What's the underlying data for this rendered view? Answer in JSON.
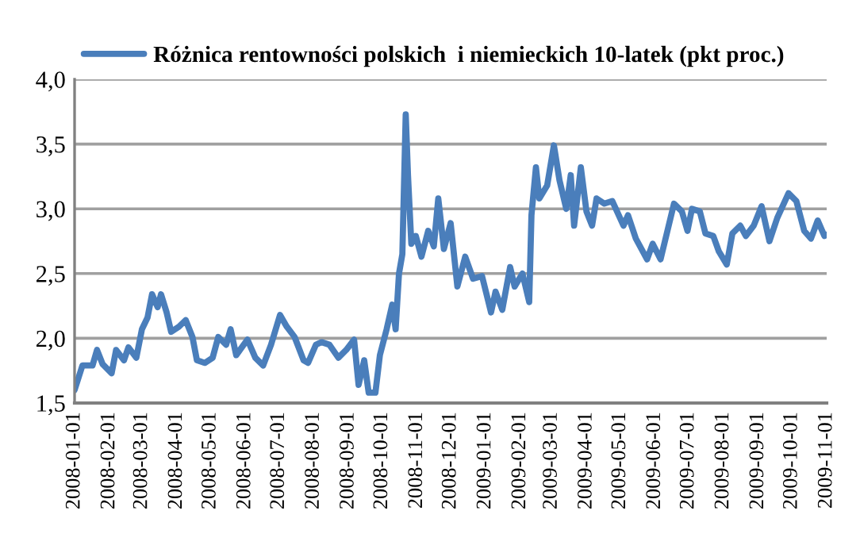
{
  "chart_data": {
    "type": "line",
    "x": [
      "2008-01-01",
      "2008-01-08",
      "2008-01-17",
      "2008-01-21",
      "2008-01-26",
      "2008-02-03",
      "2008-02-07",
      "2008-02-14",
      "2008-02-18",
      "2008-02-25",
      "2008-03-01",
      "2008-03-06",
      "2008-03-10",
      "2008-03-15",
      "2008-03-18",
      "2008-03-23",
      "2008-03-27",
      "2008-04-03",
      "2008-04-09",
      "2008-04-15",
      "2008-04-19",
      "2008-04-26",
      "2008-05-03",
      "2008-05-08",
      "2008-05-15",
      "2008-05-19",
      "2008-05-24",
      "2008-06-03",
      "2008-06-10",
      "2008-06-17",
      "2008-06-24",
      "2008-07-02",
      "2008-07-08",
      "2008-07-15",
      "2008-07-23",
      "2008-07-27",
      "2008-08-03",
      "2008-08-08",
      "2008-08-15",
      "2008-08-23",
      "2008-08-30",
      "2008-09-06",
      "2008-09-10",
      "2008-09-15",
      "2008-09-19",
      "2008-09-25",
      "2008-09-29",
      "2008-10-05",
      "2008-10-10",
      "2008-10-13",
      "2008-10-16",
      "2008-10-19",
      "2008-10-22",
      "2008-10-24",
      "2008-10-27",
      "2008-10-31",
      "2008-11-05",
      "2008-11-11",
      "2008-11-16",
      "2008-11-20",
      "2008-11-25",
      "2008-12-01",
      "2008-12-07",
      "2008-12-14",
      "2008-12-21",
      "2008-12-29",
      "2009-01-06",
      "2009-01-10",
      "2009-01-16",
      "2009-01-23",
      "2009-01-27",
      "2009-02-03",
      "2009-02-09",
      "2009-02-11",
      "2009-02-15",
      "2009-02-18",
      "2009-02-25",
      "2009-03-03",
      "2009-03-08",
      "2009-03-14",
      "2009-03-18",
      "2009-03-21",
      "2009-03-27",
      "2009-04-01",
      "2009-04-06",
      "2009-04-10",
      "2009-04-17",
      "2009-04-24",
      "2009-05-04",
      "2009-05-08",
      "2009-05-15",
      "2009-05-25",
      "2009-05-30",
      "2009-06-06",
      "2009-06-18",
      "2009-06-25",
      "2009-06-30",
      "2009-07-04",
      "2009-07-11",
      "2009-07-16",
      "2009-07-23",
      "2009-07-28",
      "2009-08-04",
      "2009-08-09",
      "2009-08-16",
      "2009-08-21",
      "2009-08-28",
      "2009-09-04",
      "2009-09-11",
      "2009-09-18",
      "2009-09-28",
      "2009-10-05",
      "2009-10-12",
      "2009-10-18",
      "2009-10-24",
      "2009-10-30",
      "2009-11-01"
    ],
    "series": [
      {
        "name": "Różnica rentowności polskich  i niemieckich 10-latek (pkt proc.)",
        "color": "#4a7ebb",
        "values": [
          1.6,
          1.79,
          1.79,
          1.91,
          1.8,
          1.73,
          1.91,
          1.83,
          1.93,
          1.85,
          2.07,
          2.16,
          2.34,
          2.24,
          2.34,
          2.2,
          2.05,
          2.09,
          2.14,
          2.01,
          1.83,
          1.81,
          1.85,
          2.01,
          1.95,
          2.07,
          1.87,
          1.99,
          1.85,
          1.79,
          1.95,
          2.18,
          2.09,
          2.01,
          1.83,
          1.81,
          1.95,
          1.97,
          1.95,
          1.85,
          1.91,
          1.99,
          1.64,
          1.83,
          1.58,
          1.58,
          1.87,
          2.07,
          2.26,
          2.07,
          2.5,
          2.65,
          3.73,
          3.26,
          2.73,
          2.79,
          2.63,
          2.83,
          2.71,
          3.08,
          2.69,
          2.89,
          2.4,
          2.63,
          2.46,
          2.48,
          2.2,
          2.36,
          2.22,
          2.55,
          2.4,
          2.5,
          2.28,
          2.95,
          3.32,
          3.08,
          3.18,
          3.49,
          3.22,
          3.0,
          3.26,
          2.87,
          3.32,
          2.98,
          2.87,
          3.08,
          3.04,
          3.06,
          2.87,
          2.95,
          2.77,
          2.61,
          2.73,
          2.61,
          3.04,
          2.98,
          2.83,
          3.0,
          2.98,
          2.81,
          2.79,
          2.67,
          2.57,
          2.81,
          2.87,
          2.79,
          2.87,
          3.02,
          2.75,
          2.93,
          3.12,
          3.06,
          2.83,
          2.77,
          2.91,
          2.79,
          2.8
        ]
      }
    ],
    "xlim": [
      "2008-01-01",
      "2009-11-01"
    ],
    "xticks": [
      "2008-01-01",
      "2008-02-01",
      "2008-03-01",
      "2008-04-01",
      "2008-05-01",
      "2008-06-01",
      "2008-07-01",
      "2008-08-01",
      "2008-09-01",
      "2008-10-01",
      "2008-11-01",
      "2008-12-01",
      "2009-01-01",
      "2009-02-01",
      "2009-03-01",
      "2009-04-01",
      "2009-05-01",
      "2009-06-01",
      "2009-07-01",
      "2009-08-01",
      "2009-09-01",
      "2009-10-01",
      "2009-11-01"
    ],
    "ylim": [
      1.5,
      4.0
    ],
    "yticks": [
      {
        "value": 1.5,
        "label": "1,5"
      },
      {
        "value": 2.0,
        "label": "2,0"
      },
      {
        "value": 2.5,
        "label": "2,5"
      },
      {
        "value": 3.0,
        "label": "3,0"
      },
      {
        "value": 3.5,
        "label": "3,5"
      },
      {
        "value": 4.0,
        "label": "4,0"
      }
    ],
    "grid": "y",
    "legend": "top",
    "line_style": "solid",
    "marker": "none"
  }
}
